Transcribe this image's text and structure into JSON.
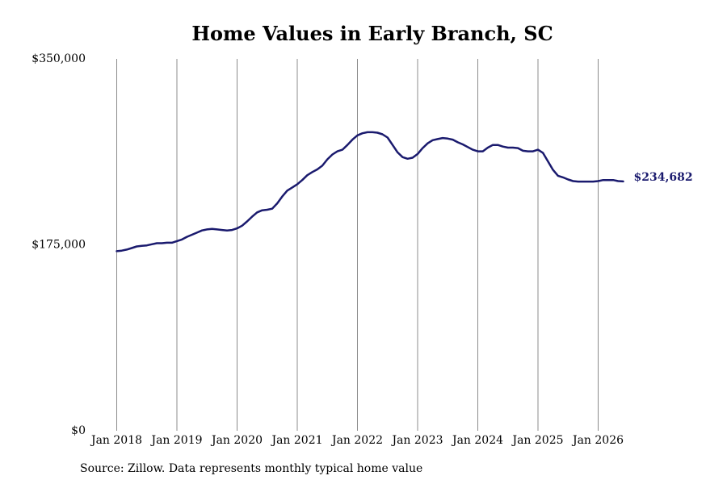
{
  "colors": {
    "line": "#1a1a6e",
    "gridline": "#8c8c8c",
    "text": "#000000",
    "background": "#ffffff"
  },
  "source_note": "Source: Zillow. Data represents monthly typical home value",
  "chart_data": {
    "type": "line",
    "title": "Home Values in Early Branch, SC",
    "xlabel": "",
    "ylabel": "",
    "ylim": [
      0,
      350000
    ],
    "y_ticks": [
      {
        "value": 0,
        "label": "$0"
      },
      {
        "value": 175000,
        "label": "$175,000"
      },
      {
        "value": 350000,
        "label": "$350,000"
      }
    ],
    "x_ticks": [
      {
        "value": "2018-01",
        "label": "Jan 2018"
      },
      {
        "value": "2019-01",
        "label": "Jan 2019"
      },
      {
        "value": "2020-01",
        "label": "Jan 2020"
      },
      {
        "value": "2021-01",
        "label": "Jan 2021"
      },
      {
        "value": "2022-01",
        "label": "Jan 2022"
      },
      {
        "value": "2023-01",
        "label": "Jan 2023"
      },
      {
        "value": "2024-01",
        "label": "Jan 2024"
      },
      {
        "value": "2025-01",
        "label": "Jan 2025"
      },
      {
        "value": "2026-01",
        "label": "Jan 2026"
      }
    ],
    "grid": "vertical",
    "end_label": "$234,682",
    "series": [
      {
        "points": [
          [
            "2018-01",
            169000
          ],
          [
            "2018-02",
            169500
          ],
          [
            "2018-03",
            170500
          ],
          [
            "2018-04",
            172000
          ],
          [
            "2018-05",
            173500
          ],
          [
            "2018-06",
            174000
          ],
          [
            "2018-07",
            174500
          ],
          [
            "2018-08",
            175500
          ],
          [
            "2018-09",
            176500
          ],
          [
            "2018-10",
            176500
          ],
          [
            "2018-11",
            177000
          ],
          [
            "2018-12",
            177000
          ],
          [
            "2019-01",
            178500
          ],
          [
            "2019-02",
            180000
          ],
          [
            "2019-03",
            182500
          ],
          [
            "2019-04",
            184500
          ],
          [
            "2019-05",
            186500
          ],
          [
            "2019-06",
            188500
          ],
          [
            "2019-07",
            189500
          ],
          [
            "2019-08",
            190000
          ],
          [
            "2019-09",
            189500
          ],
          [
            "2019-10",
            189000
          ],
          [
            "2019-11",
            188500
          ],
          [
            "2019-12",
            189000
          ],
          [
            "2020-01",
            190500
          ],
          [
            "2020-02",
            193000
          ],
          [
            "2020-03",
            197000
          ],
          [
            "2020-04",
            201500
          ],
          [
            "2020-05",
            205500
          ],
          [
            "2020-06",
            207500
          ],
          [
            "2020-07",
            208000
          ],
          [
            "2020-08",
            209000
          ],
          [
            "2020-09",
            214000
          ],
          [
            "2020-10",
            220500
          ],
          [
            "2020-11",
            226000
          ],
          [
            "2020-12",
            229000
          ],
          [
            "2021-01",
            232000
          ],
          [
            "2021-02",
            236000
          ],
          [
            "2021-03",
            240500
          ],
          [
            "2021-04",
            243500
          ],
          [
            "2021-05",
            246000
          ],
          [
            "2021-06",
            249500
          ],
          [
            "2021-07",
            255500
          ],
          [
            "2021-08",
            260000
          ],
          [
            "2021-09",
            263000
          ],
          [
            "2021-10",
            264500
          ],
          [
            "2021-11",
            269000
          ],
          [
            "2021-12",
            274000
          ],
          [
            "2022-01",
            278000
          ],
          [
            "2022-02",
            280000
          ],
          [
            "2022-03",
            281000
          ],
          [
            "2022-04",
            281000
          ],
          [
            "2022-05",
            280500
          ],
          [
            "2022-06",
            279000
          ],
          [
            "2022-07",
            276000
          ],
          [
            "2022-08",
            269000
          ],
          [
            "2022-09",
            262000
          ],
          [
            "2022-10",
            257500
          ],
          [
            "2022-11",
            256000
          ],
          [
            "2022-12",
            257000
          ],
          [
            "2023-01",
            260500
          ],
          [
            "2023-02",
            266000
          ],
          [
            "2023-03",
            270500
          ],
          [
            "2023-04",
            273500
          ],
          [
            "2023-05",
            274500
          ],
          [
            "2023-06",
            275500
          ],
          [
            "2023-07",
            275000
          ],
          [
            "2023-08",
            274000
          ],
          [
            "2023-09",
            271500
          ],
          [
            "2023-10",
            269500
          ],
          [
            "2023-11",
            267000
          ],
          [
            "2023-12",
            264500
          ],
          [
            "2024-01",
            263000
          ],
          [
            "2024-02",
            263000
          ],
          [
            "2024-03",
            266500
          ],
          [
            "2024-04",
            269000
          ],
          [
            "2024-05",
            269000
          ],
          [
            "2024-06",
            267500
          ],
          [
            "2024-07",
            266500
          ],
          [
            "2024-08",
            266500
          ],
          [
            "2024-09",
            266000
          ],
          [
            "2024-10",
            263500
          ],
          [
            "2024-11",
            263000
          ],
          [
            "2024-12",
            263000
          ],
          [
            "2025-01",
            264500
          ],
          [
            "2025-02",
            261500
          ],
          [
            "2025-03",
            253500
          ],
          [
            "2025-04",
            245500
          ],
          [
            "2025-05",
            240000
          ],
          [
            "2025-06",
            238500
          ],
          [
            "2025-07",
            236500
          ],
          [
            "2025-08",
            235000
          ],
          [
            "2025-09",
            234500
          ],
          [
            "2025-10",
            234500
          ],
          [
            "2025-11",
            234500
          ],
          [
            "2025-12",
            234500
          ],
          [
            "2026-01",
            235000
          ],
          [
            "2026-02",
            236000
          ],
          [
            "2026-03",
            236000
          ],
          [
            "2026-04",
            236000
          ],
          [
            "2026-05",
            235000
          ],
          [
            "2026-06",
            234682
          ]
        ]
      }
    ]
  }
}
